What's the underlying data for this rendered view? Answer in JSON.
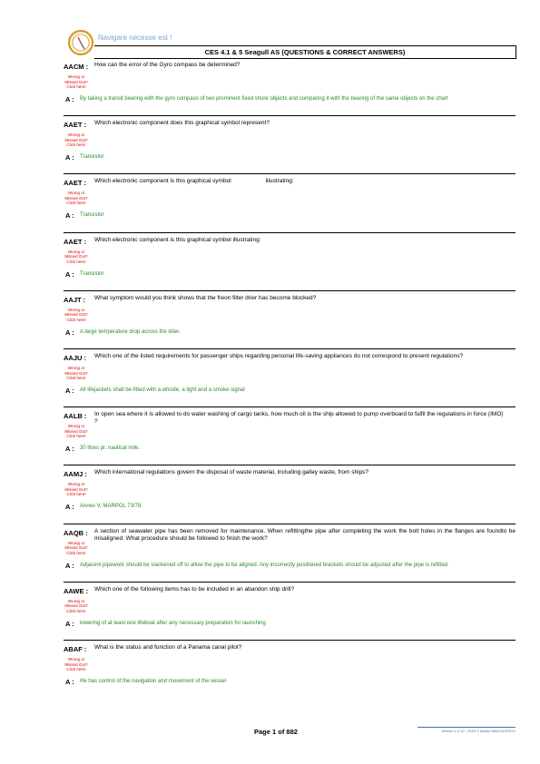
{
  "header": {
    "motto": "Navigare necesse est !",
    "title": "CES 4.1 & 5 Seagull AS (QUESTIONS & CORRECT ANSWERS)"
  },
  "wrong_note": [
    "Wrong or",
    "Missed Out?",
    "Click here!"
  ],
  "answer_label": "A :",
  "items": [
    {
      "code": "AACM :",
      "question": "How can the error of the Gyro compass be determined?",
      "answer": "By taking a transit bearing with the gyro compass of two prominent fixed shore objects and comparing it with the bearing of the same objects on the chart"
    },
    {
      "code": "AAET :",
      "question": "Which electronic component does this graphical symbol represent?",
      "answer": "Transistor"
    },
    {
      "code": "AAET :",
      "question": "Which electronic component is this graphical symbol                     illustrating:",
      "answer": "Transistor"
    },
    {
      "code": "AAET :",
      "question": "Which electronic component is this graphical symbol illustrating:",
      "answer": "Transistor"
    },
    {
      "code": "AAJT :",
      "question": "What symptom would you think shows that the freon filter drier has become blocked?",
      "answer": "A large temperature drop across the drier."
    },
    {
      "code": "AAJU :",
      "question": "Which one of the listed requirements for passenger ships regarding personal life-saving appliances do not correspond to present regulations?",
      "answer": "All lifejackets shall be fitted with a whistle, a light and a smoke signal"
    },
    {
      "code": "AALB :",
      "question": "In open sea where it is allowed to do water washing of cargo tanks, how much oil is the ship allowed to pump overboard to fulfil the regulations in force (IMO)\n?",
      "answer": "30 litres pr. nautical mile."
    },
    {
      "code": "AAMJ :",
      "question": "Which international regulations govern the disposal of waste material, including galley waste, from ships?",
      "answer": "Annex V, MARPOL 73/78."
    },
    {
      "code": "AAQB :",
      "question": "A section of seawater pipe has been removed for maintenance. When refittingthe pipe after completing the work the bolt holes in the flanges are foundto be misaligned. What procedure should be followed to finish the work?",
      "answer": "Adjacent pipework should be slackened off to allow the pipe to be aligned. Any incorrectly positioned brackets should be adjusted after the pipe is refitted."
    },
    {
      "code": "AAWE :",
      "question": "Which one of the following items has to be included in an abandon ship drill?",
      "answer": "lowering of at least one lifeboat after any necessary preparation for launching"
    },
    {
      "code": "ABAF :",
      "question": "What is the status and function of a Panama canal pilot?",
      "answer": "He has control of the navigation and movement of the vessel"
    }
  ],
  "footer": {
    "page": "Page 1 of 882",
    "version": "Version 1.0.12 ; 2015 © Adrian MINCULESCU"
  }
}
